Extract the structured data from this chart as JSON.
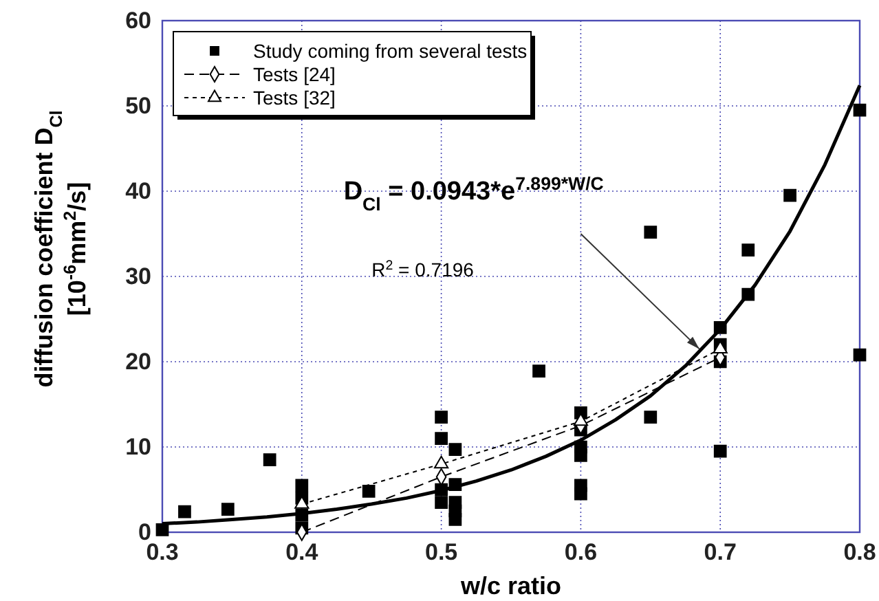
{
  "chart_data": {
    "type": "scatter",
    "xlabel": "w/c ratio",
    "ylabel": "diffusion coefficient D$_{Cl}$\n[10$^{-6}$mm$^{2}$/s]",
    "xlim": [
      0.3,
      0.8
    ],
    "xticks": [
      0.3,
      0.4,
      0.5,
      0.6,
      0.7,
      0.8
    ],
    "ylim": [
      0,
      60
    ],
    "yticks": [
      0,
      10,
      20,
      30,
      40,
      50,
      60
    ],
    "grid": true,
    "legend": "top left",
    "series": [
      {
        "name": "Study coming from several tests",
        "marker": "square",
        "color": "#000000",
        "x": [
          0.3,
          0.316,
          0.347,
          0.377,
          0.4,
          0.4,
          0.4,
          0.4,
          0.448,
          0.5,
          0.5,
          0.5,
          0.5,
          0.51,
          0.51,
          0.51,
          0.51,
          0.51,
          0.57,
          0.6,
          0.6,
          0.6,
          0.6,
          0.6,
          0.6,
          0.65,
          0.65,
          0.7,
          0.7,
          0.7,
          0.7,
          0.72,
          0.72,
          0.75,
          0.8,
          0.8
        ],
        "values": [
          0.3,
          2.4,
          2.7,
          8.5,
          0.5,
          2,
          4,
          5.5,
          4.8,
          13.5,
          11,
          5,
          3.5,
          9.7,
          5.6,
          3.5,
          2.5,
          1.5,
          18.9,
          14,
          12,
          10,
          9,
          5.5,
          4.5,
          35.2,
          13.5,
          24,
          22,
          20,
          9.5,
          27.9,
          33.1,
          39.5,
          49.5,
          20.8
        ]
      },
      {
        "type": "line",
        "line_style": "solid",
        "marker": "none",
        "color": "#000000",
        "x": [
          0.3,
          0.325,
          0.35,
          0.375,
          0.4,
          0.425,
          0.45,
          0.475,
          0.5,
          0.525,
          0.55,
          0.575,
          0.6,
          0.625,
          0.65,
          0.675,
          0.7,
          0.725,
          0.75,
          0.775,
          0.8
        ],
        "values": [
          1.0,
          1.2,
          1.5,
          1.8,
          2.2,
          2.7,
          3.3,
          4.0,
          4.9,
          6.0,
          7.3,
          8.9,
          10.8,
          13.2,
          16.0,
          19.5,
          23.8,
          29.0,
          35.3,
          43.1,
          52.4
        ]
      },
      {
        "name": "Tests [24]",
        "type": "line",
        "line_style": "dashed",
        "marker": "diamond",
        "color": "#000000",
        "x": [
          0.4,
          0.5,
          0.6,
          0.7
        ],
        "values": [
          0,
          6.5,
          12.5,
          20.5
        ]
      },
      {
        "name": "Tests [32]",
        "type": "line",
        "line_style": "dotted",
        "marker": "triangle",
        "color": "#000000",
        "x": [
          0.4,
          0.5,
          0.6,
          0.7
        ],
        "values": [
          3.3,
          8,
          13,
          21.5
        ]
      }
    ],
    "annotations": [
      {
        "text": "D$_{Cl}$ = 0.0943*e$^{7.899*W/C}$",
        "x": 0.685,
        "y": 21.5
      },
      "R$^{2}$ = 0.7196"
    ]
  }
}
